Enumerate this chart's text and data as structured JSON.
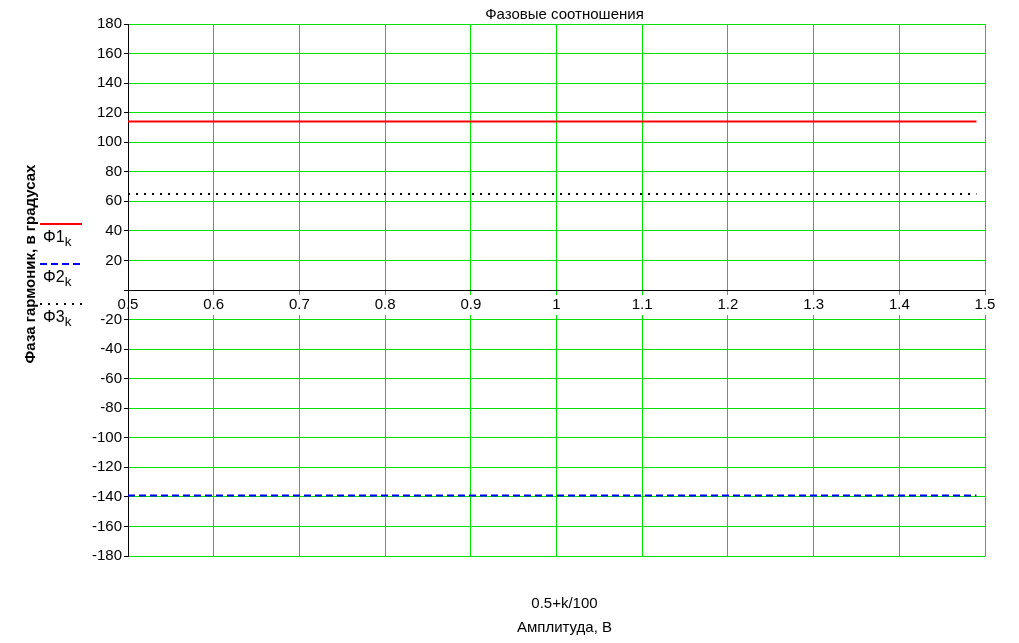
{
  "chart_data": {
    "type": "line",
    "title": "Фазовые соотношения",
    "xlabel": "0.5+k/100\nАмплитуда, В",
    "ylabel": "Фаза гармоник, в градусах",
    "x": [
      0.5,
      1.49
    ],
    "series": [
      {
        "name": "Φ1$_{k}$",
        "color": "#ff0000",
        "line_style": "solid",
        "values": [
          114,
          114
        ]
      },
      {
        "name": "Φ2$_{k}$",
        "color": "#0000ff",
        "line_style": "dashed",
        "values": [
          -139,
          -139
        ]
      },
      {
        "name": "Φ3$_{k}$",
        "color": "#000000",
        "line_style": "dotted",
        "values": [
          65,
          65
        ]
      }
    ],
    "xlim": [
      0.5,
      1.5
    ],
    "xticks": [
      0.5,
      0.6,
      0.7,
      0.8,
      0.9,
      1,
      1.1,
      1.2,
      1.3,
      1.4,
      1.5
    ],
    "ylim": [
      -180,
      180
    ],
    "yticks": [
      -180,
      -160,
      -140,
      -120,
      -100,
      -80,
      -60,
      -40,
      -20,
      {
        "value": 0,
        "label": null
      },
      20,
      40,
      60,
      80,
      100,
      120,
      140,
      160,
      180
    ],
    "grid": true,
    "legend": "left"
  }
}
